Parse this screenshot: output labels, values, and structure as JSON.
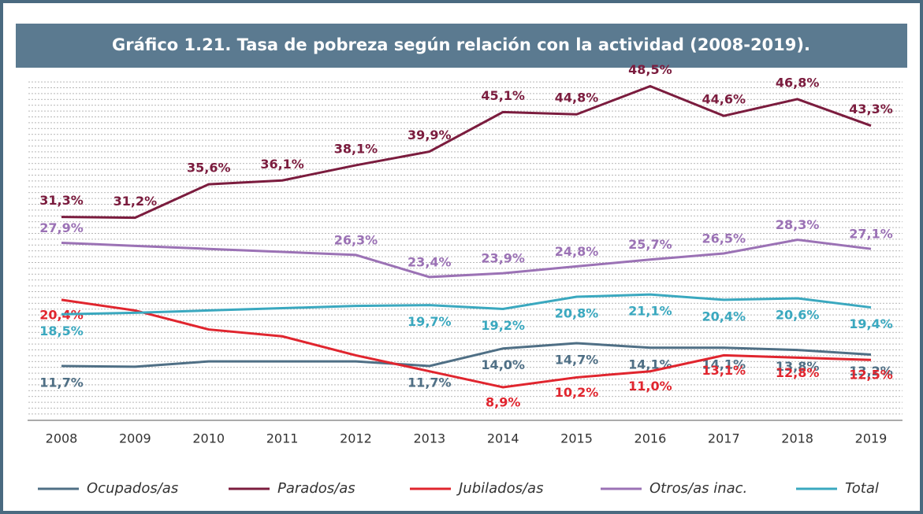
{
  "chart_data": {
    "type": "line",
    "title": "Gráfico 1.21.  Tasa de pobreza según relación con la actividad (2008-2019).",
    "categories": [
      "2008",
      "2009",
      "2010",
      "2011",
      "2012",
      "2013",
      "2014",
      "2015",
      "2016",
      "2017",
      "2018",
      "2019"
    ],
    "ylim": [
      6,
      50
    ],
    "series": [
      {
        "name": "Ocupados/as",
        "color": "#4f6f85",
        "values": [
          11.7,
          11.6,
          12.3,
          12.3,
          12.3,
          11.7,
          14.0,
          14.7,
          14.1,
          14.1,
          13.8,
          13.2
        ],
        "value_labels": [
          "11,7%",
          null,
          null,
          null,
          null,
          "11,7%",
          "14,0%",
          "14,7%",
          "14,1%",
          "14,1%",
          "13,8%",
          "13,2%"
        ]
      },
      {
        "name": "Parados/as",
        "color": "#7b1c3e",
        "values": [
          31.3,
          31.2,
          35.6,
          36.1,
          38.1,
          39.9,
          45.1,
          44.8,
          48.5,
          44.6,
          46.8,
          43.3
        ],
        "value_labels": [
          "31,3%",
          "31,2%",
          "35,6%",
          "36,1%",
          "38,1%",
          "39,9%",
          "45,1%",
          "44,8%",
          "48,5%",
          "44,6%",
          "46,8%",
          "43,3%"
        ]
      },
      {
        "name": "Jubilados/as",
        "color": "#e0252e",
        "values": [
          20.4,
          19.0,
          16.5,
          15.6,
          13.1,
          11.0,
          8.9,
          10.2,
          11.0,
          13.1,
          12.8,
          12.5
        ],
        "value_labels": [
          "20,4%",
          null,
          null,
          null,
          null,
          null,
          "8,9%",
          "10,2%",
          "11,0%",
          "13,1%",
          "12,8%",
          "12,5%"
        ]
      },
      {
        "name": "Otros/as inac.",
        "color": "#9b72b5",
        "values": [
          27.9,
          27.5,
          27.1,
          26.7,
          26.3,
          23.4,
          23.9,
          24.8,
          25.7,
          26.5,
          28.3,
          27.1
        ],
        "value_labels": [
          "27,9%",
          null,
          null,
          null,
          "26,3%",
          "23,4%",
          "23,9%",
          "24,8%",
          "25,7%",
          "26,5%",
          "28,3%",
          "27,1%"
        ]
      },
      {
        "name": "Total",
        "color": "#3aa8bf",
        "values": [
          18.5,
          18.7,
          19.0,
          19.3,
          19.6,
          19.7,
          19.2,
          20.8,
          21.1,
          20.4,
          20.6,
          19.4
        ],
        "value_labels": [
          "18,5%",
          null,
          null,
          null,
          null,
          "19,7%",
          "19,2%",
          "20,8%",
          "21,1%",
          "20,4%",
          "20,6%",
          "19,4%"
        ]
      }
    ]
  }
}
